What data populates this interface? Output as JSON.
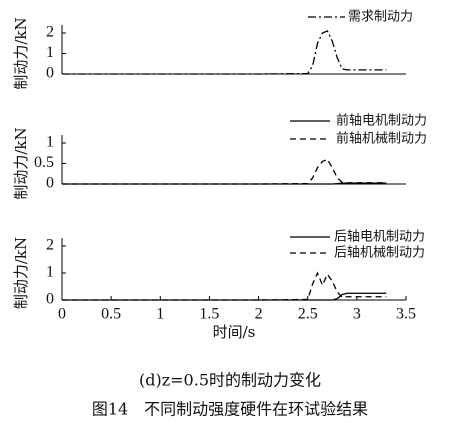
{
  "chart_data": [
    {
      "type": "line",
      "ylabel": "制动力/kN",
      "legend": "upper right",
      "x": [
        0,
        0.5,
        1,
        1.5,
        2,
        2.5,
        2.55,
        2.6,
        2.65,
        2.7,
        2.75,
        2.8,
        2.85,
        2.9,
        3,
        3.1,
        3.2,
        3.3
      ],
      "xlim": [
        0,
        3.5
      ],
      "ylim": [
        0,
        2
      ],
      "yticks": [
        0,
        1,
        2
      ],
      "series": [
        {
          "name": "需求制动力",
          "color": "#000000",
          "dash": "dashdot",
          "values": [
            0,
            0,
            0,
            0,
            0,
            0.02,
            0.4,
            1.5,
            2.0,
            2.1,
            1.6,
            0.8,
            0.25,
            0.2,
            0.2,
            0.2,
            0.2,
            0.2
          ]
        }
      ]
    },
    {
      "type": "line",
      "ylabel": "制动力/kN",
      "legend": "upper right",
      "x": [
        0,
        0.5,
        1,
        1.5,
        2,
        2.5,
        2.55,
        2.6,
        2.65,
        2.7,
        2.75,
        2.8,
        2.85,
        2.9,
        3,
        3.1,
        3.2,
        3.3
      ],
      "xlim": [
        0,
        3.5
      ],
      "ylim": [
        0,
        1
      ],
      "yticks": [
        0,
        0.5,
        1
      ],
      "series": [
        {
          "name": "前轴电机制动力",
          "color": "#000000",
          "dash": "solid",
          "values": [
            0,
            0,
            0,
            0,
            0,
            0,
            0,
            0,
            0,
            0,
            0,
            0.01,
            0.02,
            0.02,
            0.02,
            0.02,
            0.02,
            0.02
          ]
        },
        {
          "name": "前轴机械制动力",
          "color": "#000000",
          "dash": "dashed",
          "values": [
            0,
            0,
            0,
            0,
            0,
            0.01,
            0.15,
            0.4,
            0.55,
            0.6,
            0.4,
            0.15,
            0.04,
            0.03,
            0.03,
            0.03,
            0.03,
            0.03
          ]
        }
      ]
    },
    {
      "type": "line",
      "ylabel": "制动力/kN",
      "xlabel": "时间/s",
      "legend": "upper right",
      "x": [
        0,
        0.5,
        1,
        1.5,
        2,
        2.5,
        2.55,
        2.6,
        2.65,
        2.7,
        2.75,
        2.8,
        2.85,
        2.9,
        3,
        3.1,
        3.2,
        3.3
      ],
      "xlim": [
        0,
        3.5
      ],
      "xticks": [
        0,
        0.5,
        1,
        1.5,
        2,
        2.5,
        3,
        3.5
      ],
      "ylim": [
        0,
        2
      ],
      "yticks": [
        0,
        1,
        2
      ],
      "series": [
        {
          "name": "后轴电机制动力",
          "color": "#000000",
          "dash": "solid",
          "values": [
            0,
            0,
            0,
            0,
            0,
            0,
            0,
            0,
            0,
            0,
            0,
            0.05,
            0.2,
            0.25,
            0.25,
            0.25,
            0.25,
            0.25
          ]
        },
        {
          "name": "后轴机械制动力",
          "color": "#000000",
          "dash": "dashed",
          "values": [
            0,
            0,
            0,
            0,
            0,
            0.02,
            0.6,
            1.0,
            0.55,
            0.95,
            0.7,
            0.3,
            0.1,
            0.12,
            0.12,
            0.12,
            0.12,
            0.12
          ]
        }
      ]
    }
  ],
  "subcaption": "(d)z=0.5时的制动力变化",
  "figure_caption": "图14　不同制动强度硬件在环试验结果"
}
